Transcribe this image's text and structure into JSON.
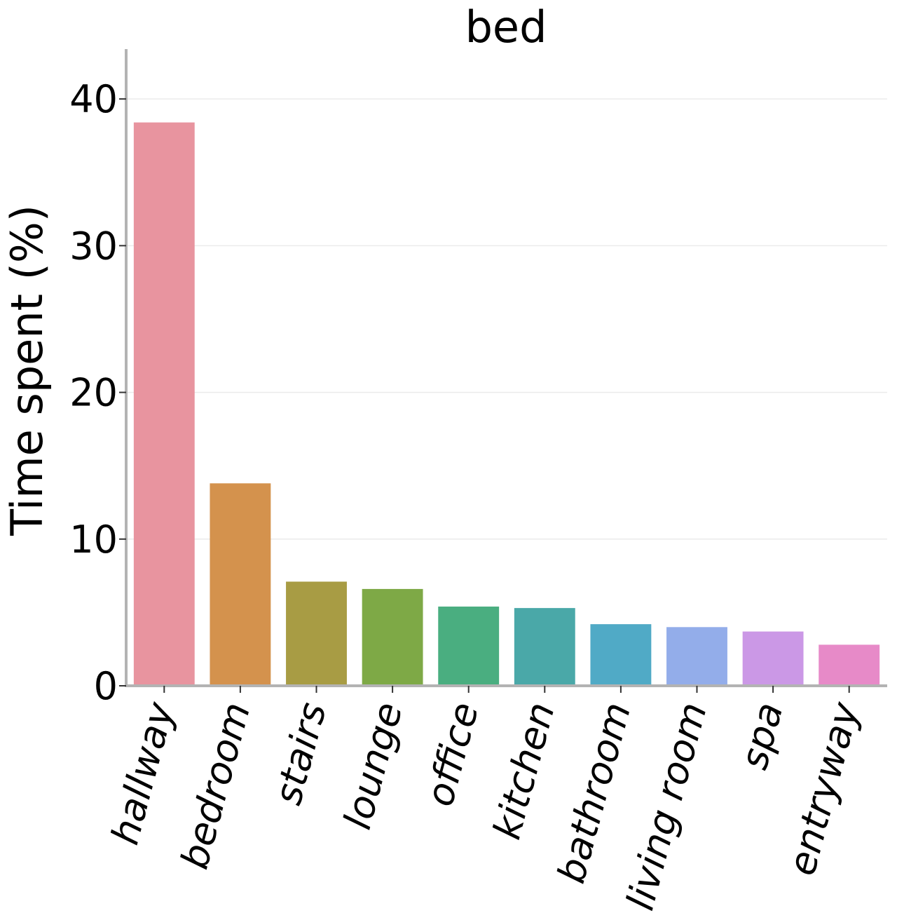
{
  "chart_data": {
    "type": "bar",
    "title": "bed",
    "xlabel": "",
    "ylabel": "Time spent (%)",
    "ylim": [
      0,
      43.4
    ],
    "yticks": [
      0,
      10,
      20,
      30,
      40
    ],
    "grid": "horizontal",
    "categories": [
      "hallway",
      "bedroom",
      "stairs",
      "lounge",
      "office",
      "kitchen",
      "bathroom",
      "living room",
      "spa",
      "entryway"
    ],
    "values": [
      38.4,
      13.8,
      7.1,
      6.6,
      5.4,
      5.3,
      4.2,
      4.0,
      3.7,
      2.8
    ],
    "colors": [
      "#e8949f",
      "#d4924d",
      "#a89c44",
      "#7ea946",
      "#4aae80",
      "#4aa8a8",
      "#50aac6",
      "#93adea",
      "#cb98e6",
      "#e78ac8"
    ]
  }
}
